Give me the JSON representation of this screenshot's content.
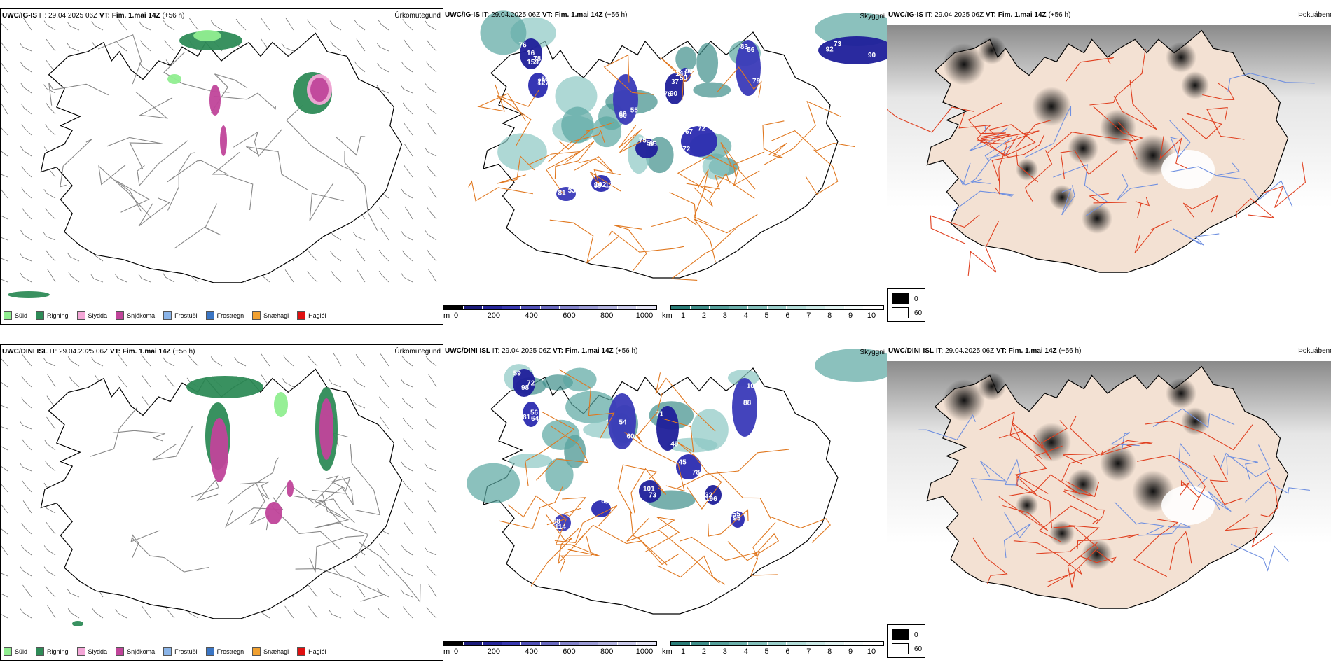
{
  "rows": [
    {
      "model": "UWC/IG-IS",
      "precip": {
        "header": {
          "model": "UWC/IG-IS",
          "it_label": "IT:",
          "it": "29.04.2025 06Z",
          "vt_label": "VT:",
          "vt": "Fim. 1.mai 14Z",
          "lead": "(+56 h)"
        },
        "title": "Úrkomutegund"
      },
      "cloud": {
        "header": {
          "model": "UWC/IG-IS",
          "it_label": "IT:",
          "it": "29.04.2025 06Z",
          "vt_label": "VT:",
          "vt": "Fim. 1.mai 14Z",
          "lead": "(+56 h)"
        },
        "title": "Skyggni",
        "labels": [
          "78",
          "56",
          "55",
          "37",
          "72",
          "83",
          "85",
          "89",
          "67",
          "73",
          "90",
          "76",
          "127",
          "50",
          "76",
          "67",
          "79",
          "75",
          "102",
          "53",
          "92",
          "141",
          "159",
          "20",
          "69",
          "90",
          "72",
          "56",
          "59",
          "12",
          "81",
          "90",
          "50",
          "16"
        ]
      },
      "fog": {
        "header": {
          "model": "UWC/IG-IS",
          "it_label": "IT:",
          "it": "29.04.2025 06Z",
          "vt_label": "VT:",
          "vt": "Fim. 1.mai 14Z",
          "lead": "(+56 h)"
        },
        "title": "Þokuábendi"
      }
    },
    {
      "model": "UWC/DINI ISL",
      "precip": {
        "header": {
          "model": "UWC/DINI ISL",
          "it_label": "IT:",
          "it": "29.04.2025 06Z",
          "vt_label": "VT:",
          "vt": "Fim. 1.mai 14Z",
          "lead": "(+56 h)"
        },
        "title": "Úrkomutegund"
      },
      "cloud": {
        "header": {
          "model": "UWC/DINI ISL",
          "it_label": "IT:",
          "it": "29.04.2025 06Z",
          "vt_label": "VT:",
          "vt": "Fim. 1.mai 14Z",
          "lead": "(+56 h)"
        },
        "title": "Skyggni",
        "labels": [
          "72",
          "56",
          "60",
          "71",
          "78",
          "104",
          "101",
          "96",
          "114",
          "196",
          "95",
          "98",
          "81",
          "54",
          "49",
          "45",
          "88",
          "73",
          "64",
          "98",
          "32",
          "155",
          "59",
          "64"
        ]
      },
      "fog": {
        "header": {
          "model": "UWC/DINI ISL",
          "it_label": "IT:",
          "it": "29.04.2025 06Z",
          "vt_label": "VT:",
          "vt": "Fim. 1.mai 14Z",
          "lead": "(+56 h)"
        },
        "title": "Þokuábendi"
      }
    }
  ],
  "precip_legend": [
    {
      "label": "Súld",
      "color": "#90ee90"
    },
    {
      "label": "Rigning",
      "color": "#2e8b57"
    },
    {
      "label": "Slydda",
      "color": "#f4a6d7"
    },
    {
      "label": "Snjókoma",
      "color": "#c0449a"
    },
    {
      "label": "Frostúði",
      "color": "#8ab4e8"
    },
    {
      "label": "Frostregn",
      "color": "#3a75c4"
    },
    {
      "label": "Snæhagl",
      "color": "#f0a030"
    },
    {
      "label": "Haglél",
      "color": "#e01010"
    }
  ],
  "cloud_base_bar": {
    "unit": "m",
    "ticks": [
      "0",
      "200",
      "400",
      "600",
      "800",
      "1000"
    ],
    "colors": [
      "#000000",
      "#1a1a7a",
      "#25259a",
      "#3838b0",
      "#5050b8",
      "#6a6ac0",
      "#8484cc",
      "#9c9cd6",
      "#b4b4e0",
      "#ccccec",
      "#e4e4f6"
    ]
  },
  "visibility_bar": {
    "unit": "km",
    "ticks": [
      "1",
      "2",
      "3",
      "4",
      "5",
      "6",
      "7",
      "8",
      "9",
      "10"
    ],
    "colors": [
      "#2a7d78",
      "#3f8f8a",
      "#55a09b",
      "#6cb0ab",
      "#84c0bb",
      "#9ccfcb",
      "#b4ddd9",
      "#cce9e6",
      "#e2f3f1",
      "#f4fbfa",
      "#ffffff"
    ]
  },
  "fog_key": {
    "dark_label": "0",
    "light_label": "60"
  },
  "colors": {
    "outline": "#000000",
    "roads_precip": "#888888",
    "roads_cloud": "#e07820",
    "roads_fog": "#e04020",
    "rivers": "#7090e0",
    "land_fog": "#f3e1d3",
    "wind_barb": "#777777"
  }
}
